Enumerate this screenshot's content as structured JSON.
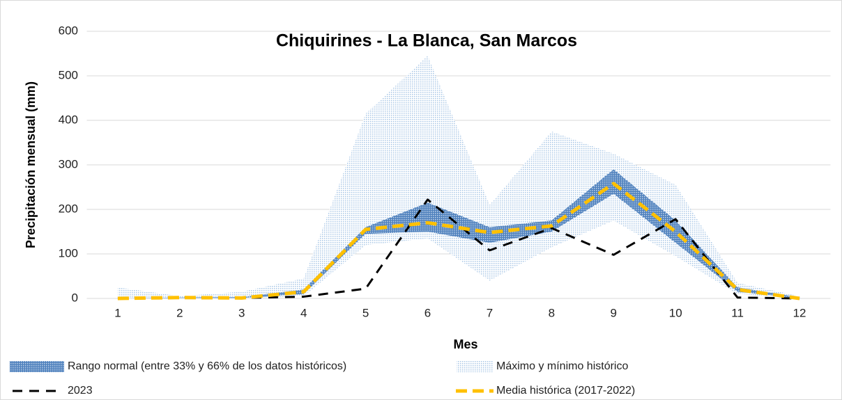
{
  "chart_data": {
    "type": "line",
    "title": "Chiquirines - La Blanca, San Marcos",
    "x_label": "Mes",
    "y_label": "Precipitación mensual (mm)",
    "categories": [
      1,
      2,
      3,
      4,
      5,
      6,
      7,
      8,
      9,
      10,
      11,
      12
    ],
    "ylim": [
      0,
      600
    ],
    "yticks": [
      0,
      100,
      200,
      300,
      400,
      500,
      600
    ],
    "grid": true,
    "series": [
      {
        "name": "Rango normal (entre 33% y 66% de los datos históricos)",
        "kind": "band",
        "color": "#4f81bd",
        "lower": [
          0,
          1,
          1,
          10,
          145,
          150,
          125,
          150,
          235,
          125,
          15,
          0
        ],
        "upper": [
          0,
          2,
          3,
          20,
          160,
          215,
          160,
          175,
          290,
          175,
          25,
          2
        ]
      },
      {
        "name": "Máximo y mínimo histórico",
        "kind": "band",
        "color": "#a9c7e6",
        "lower": [
          0,
          0,
          0,
          5,
          120,
          135,
          40,
          115,
          175,
          95,
          10,
          0
        ],
        "upper": [
          25,
          5,
          15,
          45,
          415,
          545,
          210,
          375,
          325,
          255,
          35,
          5
        ]
      },
      {
        "name": "2023",
        "kind": "line",
        "color": "#000000",
        "values": [
          0,
          2,
          1,
          4,
          22,
          222,
          108,
          158,
          98,
          178,
          2,
          0
        ]
      },
      {
        "name": "Media histórica (2017-2022)",
        "kind": "line",
        "color": "#ffc000",
        "values": [
          0,
          2,
          1,
          15,
          155,
          170,
          148,
          163,
          258,
          150,
          20,
          0
        ]
      }
    ]
  }
}
